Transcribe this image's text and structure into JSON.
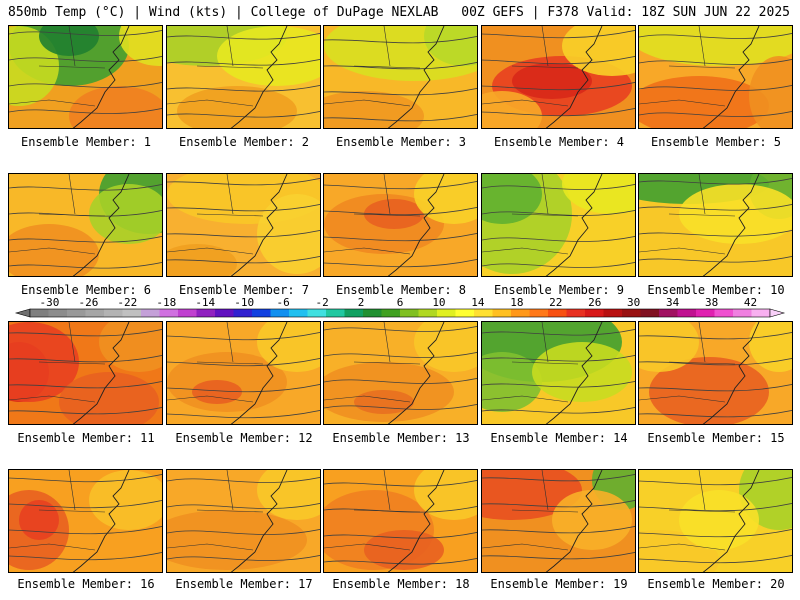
{
  "header": {
    "left": "850mb Temp (°C) | Wind (kts) | College of DuPage NEXLAB",
    "right": "00Z GEFS | F378 Valid: 18Z SUN JUN 22 2025"
  },
  "colorbar": {
    "tick_labels": [
      "-30",
      "-26",
      "-22",
      "-18",
      "-14",
      "-10",
      "-6",
      "-2",
      "2",
      "6",
      "10",
      "14",
      "18",
      "22",
      "26",
      "30",
      "34",
      "38",
      "42"
    ],
    "colors": [
      "#7f7f7f",
      "#8c8c8c",
      "#999999",
      "#a6a6a6",
      "#b3b3b3",
      "#c0c0c0",
      "#c4a0d8",
      "#d070e0",
      "#c040d0",
      "#9020c0",
      "#6010c0",
      "#3020d0",
      "#1040e0",
      "#1090f0",
      "#20c0f0",
      "#40e0e0",
      "#20c8a0",
      "#10a060",
      "#209030",
      "#40a020",
      "#80c020",
      "#b0d820",
      "#e0f020",
      "#ffff30",
      "#ffe030",
      "#ffc020",
      "#ff9818",
      "#ff7818",
      "#f85010",
      "#e83020",
      "#d81818",
      "#b81010",
      "#981010",
      "#801020",
      "#a01060",
      "#c01090",
      "#e020b0",
      "#f050d0",
      "#f080e0",
      "#f8b0f0"
    ]
  },
  "members": [
    {
      "label": "Ensemble Member: 1"
    },
    {
      "label": "Ensemble Member: 2"
    },
    {
      "label": "Ensemble Member: 3"
    },
    {
      "label": "Ensemble Member: 4"
    },
    {
      "label": "Ensemble Member: 5"
    },
    {
      "label": "Ensemble Member: 6"
    },
    {
      "label": "Ensemble Member: 7"
    },
    {
      "label": "Ensemble Member: 8"
    },
    {
      "label": "Ensemble Member: 9"
    },
    {
      "label": "Ensemble Member: 10"
    },
    {
      "label": "Ensemble Member: 11"
    },
    {
      "label": "Ensemble Member: 12"
    },
    {
      "label": "Ensemble Member: 13"
    },
    {
      "label": "Ensemble Member: 14"
    },
    {
      "label": "Ensemble Member: 15"
    },
    {
      "label": "Ensemble Member: 16"
    },
    {
      "label": "Ensemble Member: 17"
    },
    {
      "label": "Ensemble Member: 18"
    },
    {
      "label": "Ensemble Member: 19"
    },
    {
      "label": "Ensemble Member: 20"
    }
  ]
}
